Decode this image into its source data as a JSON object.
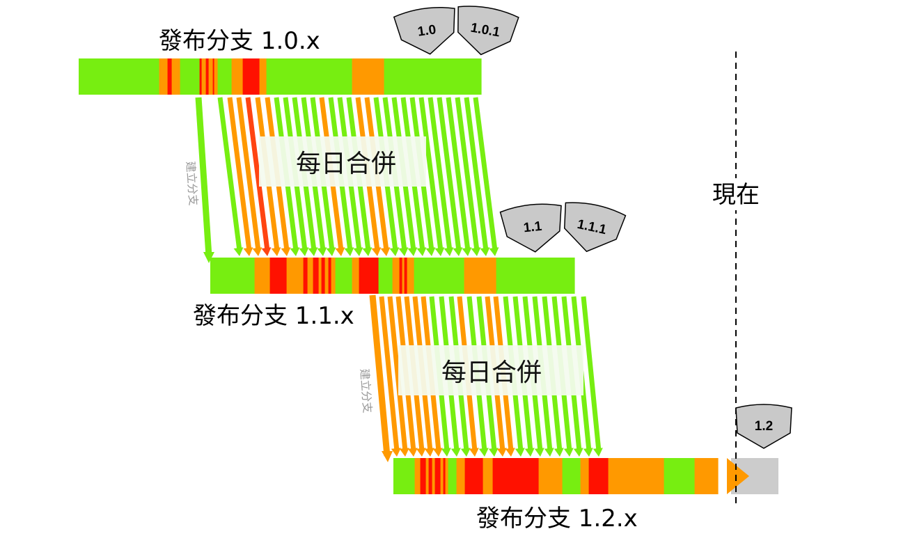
{
  "colors": {
    "green": "#77ee11",
    "orange": "#ff9900",
    "red": "#ff1100",
    "redorange": "#ff4411",
    "gray": "#cccccc",
    "tag_fill": "#c9c9c9",
    "label_box": "#f4fbef"
  },
  "branches": [
    {
      "label": "發布分支 1.0.x",
      "segments": [
        {
          "c": "green",
          "w": 115
        },
        {
          "c": "orange",
          "w": 12
        },
        {
          "c": "red",
          "w": 6
        },
        {
          "c": "orange",
          "w": 12
        },
        {
          "c": "green",
          "w": 28
        },
        {
          "c": "red",
          "w": 3
        },
        {
          "c": "orange",
          "w": 6
        },
        {
          "c": "red",
          "w": 4
        },
        {
          "c": "orange",
          "w": 6
        },
        {
          "c": "red",
          "w": 2
        },
        {
          "c": "orange",
          "w": 5
        },
        {
          "c": "green",
          "w": 20
        },
        {
          "c": "orange",
          "w": 16
        },
        {
          "c": "red",
          "w": 24
        },
        {
          "c": "orange",
          "w": 10
        },
        {
          "c": "green",
          "w": 123
        },
        {
          "c": "orange",
          "w": 46
        },
        {
          "c": "green",
          "w": 140
        }
      ]
    },
    {
      "label": "發布分支 1.1.x",
      "segments": [
        {
          "c": "green",
          "w": 63
        },
        {
          "c": "orange",
          "w": 22
        },
        {
          "c": "red",
          "w": 24
        },
        {
          "c": "orange",
          "w": 24
        },
        {
          "c": "red",
          "w": 6
        },
        {
          "c": "orange",
          "w": 8
        },
        {
          "c": "red",
          "w": 8
        },
        {
          "c": "orange",
          "w": 4
        },
        {
          "c": "red",
          "w": 5
        },
        {
          "c": "orange",
          "w": 5
        },
        {
          "c": "red",
          "w": 4
        },
        {
          "c": "orange",
          "w": 6
        },
        {
          "c": "green",
          "w": 24
        },
        {
          "c": "orange",
          "w": 10
        },
        {
          "c": "red",
          "w": 28
        },
        {
          "c": "green",
          "w": 20
        },
        {
          "c": "orange",
          "w": 10
        },
        {
          "c": "red",
          "w": 4
        },
        {
          "c": "orange",
          "w": 3
        },
        {
          "c": "red",
          "w": 4
        },
        {
          "c": "orange",
          "w": 10
        },
        {
          "c": "green",
          "w": 72
        },
        {
          "c": "orange",
          "w": 46
        },
        {
          "c": "green",
          "w": 113
        }
      ]
    },
    {
      "label": "發布分支 1.2.x",
      "segments": [
        {
          "c": "green",
          "w": 30
        },
        {
          "c": "orange",
          "w": 8
        },
        {
          "c": "red",
          "w": 8
        },
        {
          "c": "orange",
          "w": 4
        },
        {
          "c": "red",
          "w": 5
        },
        {
          "c": "orange",
          "w": 4
        },
        {
          "c": "red",
          "w": 8
        },
        {
          "c": "orange",
          "w": 4
        },
        {
          "c": "red",
          "w": 3
        },
        {
          "c": "orange",
          "w": 4
        },
        {
          "c": "green",
          "w": 12
        },
        {
          "c": "orange",
          "w": 12
        },
        {
          "c": "red",
          "w": 26
        },
        {
          "c": "orange",
          "w": 14
        },
        {
          "c": "red",
          "w": 66
        },
        {
          "c": "orange",
          "w": 34
        },
        {
          "c": "green",
          "w": 26
        },
        {
          "c": "orange",
          "w": 12
        },
        {
          "c": "red",
          "w": 28
        },
        {
          "c": "orange",
          "w": 80
        },
        {
          "c": "green",
          "w": 44
        },
        {
          "c": "orange",
          "w": 34
        }
      ]
    }
  ],
  "merge_labels": [
    "每日合併",
    "每日合併"
  ],
  "create_branch_labels": [
    "建立分支",
    "建立分支"
  ],
  "now_label": "現在",
  "tags": [
    "1.0",
    "1.0.1",
    "1.1",
    "1.1.1",
    "1.2"
  ]
}
